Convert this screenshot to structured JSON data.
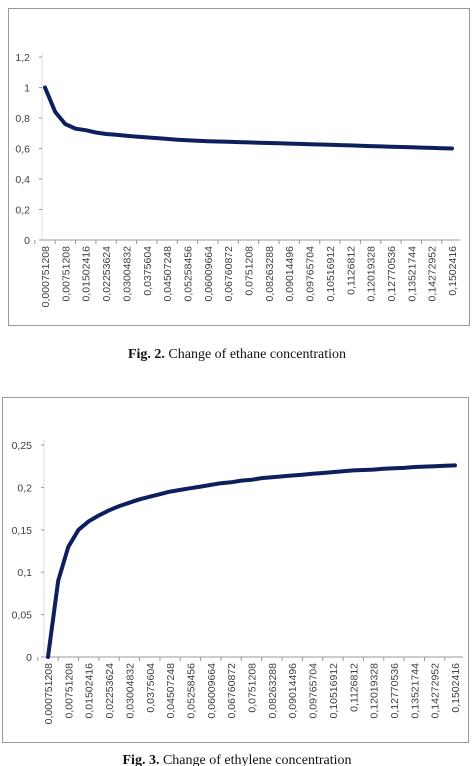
{
  "chart_data": [
    {
      "type": "line",
      "color": "#0d1f5c",
      "categories": [
        "0,000751208",
        null,
        "0,00751208",
        null,
        "0,01502416",
        null,
        "0,02253624",
        null,
        "0,03004832",
        null,
        "0,0375604",
        null,
        "0,04507248",
        null,
        "0,05258456",
        null,
        "0,06009664",
        null,
        "0,06760872",
        null,
        "0,0751208",
        null,
        "0,08263288",
        null,
        "0,09014496",
        null,
        "0,09765704",
        null,
        "0,10516912",
        null,
        "0,1126812",
        null,
        "0,12019328",
        null,
        "0,12770536",
        null,
        "0,13521744",
        null,
        "0,14272952",
        null,
        "0,1502416"
      ],
      "values": [
        1.0,
        0.84,
        0.76,
        0.73,
        0.72,
        0.705,
        0.695,
        0.69,
        0.683,
        0.678,
        0.673,
        0.668,
        0.663,
        0.658,
        0.654,
        0.651,
        0.648,
        0.646,
        0.644,
        0.642,
        0.64,
        0.638,
        0.636,
        0.634,
        0.632,
        0.63,
        0.628,
        0.626,
        0.624,
        0.622,
        0.62,
        0.618,
        0.616,
        0.614,
        0.612,
        0.61,
        0.608,
        0.606,
        0.604,
        0.602,
        0.6
      ],
      "ylim": [
        0,
        1.2
      ],
      "yticks": [
        0,
        {
          "value": 0.2,
          "label": "0,2"
        },
        {
          "value": 0.4,
          "label": "0,4"
        },
        {
          "value": 0.6,
          "label": "0,6"
        },
        {
          "value": 0.8,
          "label": "0,8"
        },
        1,
        {
          "value": 1.2,
          "label": "1,2"
        }
      ],
      "caption_label": "Fig. 2.",
      "caption": "Change of ethane concentration"
    },
    {
      "type": "line",
      "color": "#0d1f5c",
      "categories": [
        "0,000751208",
        null,
        "0,00751208",
        null,
        "0,01502416",
        null,
        "0,02253624",
        null,
        "0,03004832",
        null,
        "0,0375604",
        null,
        "0,04507248",
        null,
        "0,05258456",
        null,
        "0,06009664",
        null,
        "0,06760872",
        null,
        "0,0751208",
        null,
        "0,08263288",
        null,
        "0,09014496",
        null,
        "0,09765704",
        null,
        "0,10516912",
        null,
        "0,1126812",
        null,
        "0,12019328",
        null,
        "0,12770536",
        null,
        "0,13521744",
        null,
        "0,14272952",
        null,
        "0,1502416"
      ],
      "values": [
        0,
        0.09,
        0.13,
        0.15,
        0.16,
        0.167,
        0.173,
        0.178,
        0.182,
        0.186,
        0.189,
        0.192,
        0.195,
        0.197,
        0.199,
        0.201,
        0.203,
        0.205,
        0.206,
        0.208,
        0.209,
        0.211,
        0.212,
        0.213,
        0.214,
        0.215,
        0.216,
        0.217,
        0.218,
        0.219,
        0.22,
        0.2205,
        0.221,
        0.222,
        0.2225,
        0.223,
        0.224,
        0.2245,
        0.225,
        0.2255,
        0.226
      ],
      "ylim": [
        0,
        0.25
      ],
      "yticks": [
        0,
        {
          "value": 0.05,
          "label": "0,05"
        },
        {
          "value": 0.1,
          "label": "0,1"
        },
        {
          "value": 0.15,
          "label": "0,15"
        },
        {
          "value": 0.2,
          "label": "0,2"
        },
        {
          "value": 0.25,
          "label": "0,25"
        }
      ],
      "caption_label": "Fig. 3.",
      "caption": "Change of ethylene concentration"
    }
  ]
}
